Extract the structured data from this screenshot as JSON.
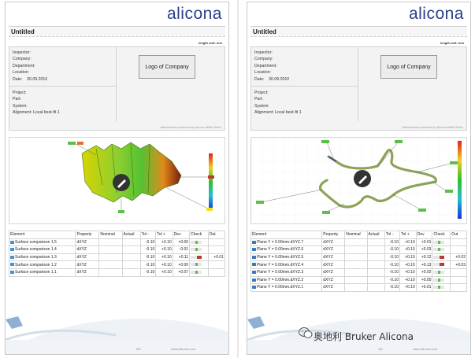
{
  "brand": "alicona",
  "pages": [
    {
      "title": "Untitled",
      "unit": "length unit: mm",
      "info_top": [
        "Inspector:",
        "Company:",
        "Department:",
        "Location:",
        "Date:"
      ],
      "date_value": "30.09.2010",
      "info_bottom": [
        "Project:",
        "Part:",
        "System:",
        "Alignment: Local best-fit 1"
      ],
      "company_logo": "Logo of Company",
      "footnote": "Measurement performed by Alicona Infinite Series",
      "table_headers": [
        "Element",
        "Property",
        "Nominal",
        "Actual",
        "Tol -",
        "Tol +",
        "Dev",
        "Check",
        "Out"
      ],
      "rows": [
        {
          "element": "Surface comparison 1.5",
          "property": "dXYZ",
          "tol_minus": "-0.10",
          "tol_plus": "+0.10",
          "dev": "+0.00",
          "out": ""
        },
        {
          "element": "Surface comparison 1.4",
          "property": "dXYZ",
          "tol_minus": "-0.10",
          "tol_plus": "+0.10",
          "dev": "-0.01",
          "out": ""
        },
        {
          "element": "Surface comparison 1.3",
          "property": "dXYZ",
          "tol_minus": "-0.10",
          "tol_plus": "+0.10",
          "dev": "+0.11",
          "out": "+0.01"
        },
        {
          "element": "Surface comparison 1.2",
          "property": "dXYZ",
          "tol_minus": "-0.10",
          "tol_plus": "+0.10",
          "dev": "+0.00",
          "out": ""
        },
        {
          "element": "Surface comparison 1.1",
          "property": "dXYZ",
          "tol_minus": "-0.10",
          "tol_plus": "+0.10",
          "dev": "+0.07",
          "out": ""
        }
      ],
      "page_number": "2/2",
      "footer_url": "www.alicona.com"
    },
    {
      "title": "Untitled",
      "unit": "length unit: mm",
      "info_top": [
        "Inspector:",
        "Company:",
        "Department:",
        "Location:",
        "Date:"
      ],
      "date_value": "30.09.2010",
      "info_bottom": [
        "Project:",
        "Part:",
        "System:",
        "Alignment: Local best-fit 1"
      ],
      "company_logo": "Logo of Company",
      "footnote": "Measurement performed by Alicona Infinite Series",
      "table_headers": [
        "Element",
        "Property",
        "Nominal",
        "Actual",
        "Tol -",
        "Tol +",
        "Dev",
        "Check",
        "Out"
      ],
      "rows": [
        {
          "element": "Plane Y = 0.00mm.dXYZ.7",
          "property": "dXYZ",
          "tol_minus": "-0.10",
          "tol_plus": "+0.10",
          "dev": "+0.01",
          "out": ""
        },
        {
          "element": "Plane Y = 0.00mm.dXYZ.6",
          "property": "dXYZ",
          "tol_minus": "-0.10",
          "tol_plus": "+0.10",
          "dev": "+0.03",
          "out": ""
        },
        {
          "element": "Plane Y = 0.00mm.dXYZ.5",
          "property": "dXYZ",
          "tol_minus": "-0.10",
          "tol_plus": "+0.10",
          "dev": "+0.12",
          "out": "+0.02"
        },
        {
          "element": "Plane Y = 0.00mm.dXYZ.4",
          "property": "dXYZ",
          "tol_minus": "-0.10",
          "tol_plus": "+0.10",
          "dev": "+0.13",
          "out": "+0.03"
        },
        {
          "element": "Plane Y = 0.00mm.dXYZ.3",
          "property": "dXYZ",
          "tol_minus": "-0.10",
          "tol_plus": "+0.10",
          "dev": "+0.02",
          "out": ""
        },
        {
          "element": "Plane Y = 0.00mm.dXYZ.2",
          "property": "dXYZ",
          "tol_minus": "-0.10",
          "tol_plus": "+0.10",
          "dev": "+0.00",
          "out": ""
        },
        {
          "element": "Plane Y = 0.00mm.dXYZ.1",
          "property": "dXYZ",
          "tol_minus": "-0.10",
          "tol_plus": "+0.10",
          "dev": "+0.01",
          "out": ""
        }
      ],
      "page_number": "1/2",
      "footer_url": "www.alicona.com"
    }
  ],
  "watermark": "奥地利 Bruker Alicona",
  "colors": {
    "brand_blue": "#2b3f8a",
    "pass_green": "#5cbf4a",
    "fail_red": "#c0392b"
  }
}
